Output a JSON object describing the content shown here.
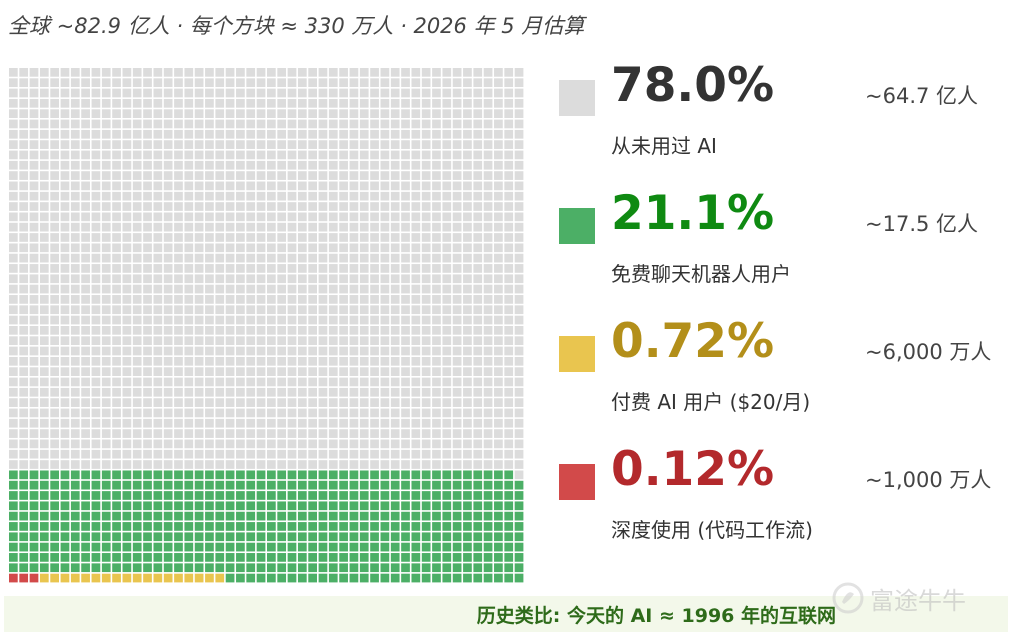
{
  "subtitle": "全球 ~82.9 亿人 · 每个方块 ≈ 330 万人 · 2026 年 5 月估算",
  "chart_data": {
    "type": "waffle",
    "grid": {
      "columns": 50,
      "rows": 50,
      "total_cells": 2500
    },
    "fill_order": "bottom-to-top, left-to-right (bottom row first)",
    "series": [
      {
        "name": "深度使用 (代码工作流)",
        "percent": 0.12,
        "cells": 3,
        "count_label": "~1,000 万人",
        "color": "#d24a4a"
      },
      {
        "name": "付费 AI 用户 ($20/月)",
        "percent": 0.72,
        "cells": 18,
        "count_label": "~6,000 万人",
        "color": "#e9c54f"
      },
      {
        "name": "免费聊天机器人用户",
        "percent": 21.1,
        "cells": 528,
        "count_label": "~17.5 亿人",
        "color": "#4caf66"
      },
      {
        "name": "从未用过 AI",
        "percent": 78.0,
        "cells": 1951,
        "count_label": "~64.7 亿人",
        "color": "#dcdcdc"
      }
    ]
  },
  "legend": [
    {
      "pct": "78.0%",
      "label": "从未用过 AI",
      "count": "~64.7 亿人",
      "color": "#dcdcdc",
      "pct_color": "#333333"
    },
    {
      "pct": "21.1%",
      "label": "免费聊天机器人用户",
      "count": "~17.5 亿人",
      "color": "#4caf66",
      "pct_color": "#0f8a12"
    },
    {
      "pct": "0.72%",
      "label": "付费 AI 用户 ($20/月)",
      "count": "~6,000 万人",
      "color": "#e9c54f",
      "pct_color": "#b38f1a"
    },
    {
      "pct": "0.12%",
      "label": "深度使用 (代码工作流)",
      "count": "~1,000 万人",
      "color": "#d24a4a",
      "pct_color": "#b3292c"
    }
  ],
  "footer": "历史类比: 今天的 AI ≈ 1996 年的互联网",
  "watermark": "富途牛牛"
}
